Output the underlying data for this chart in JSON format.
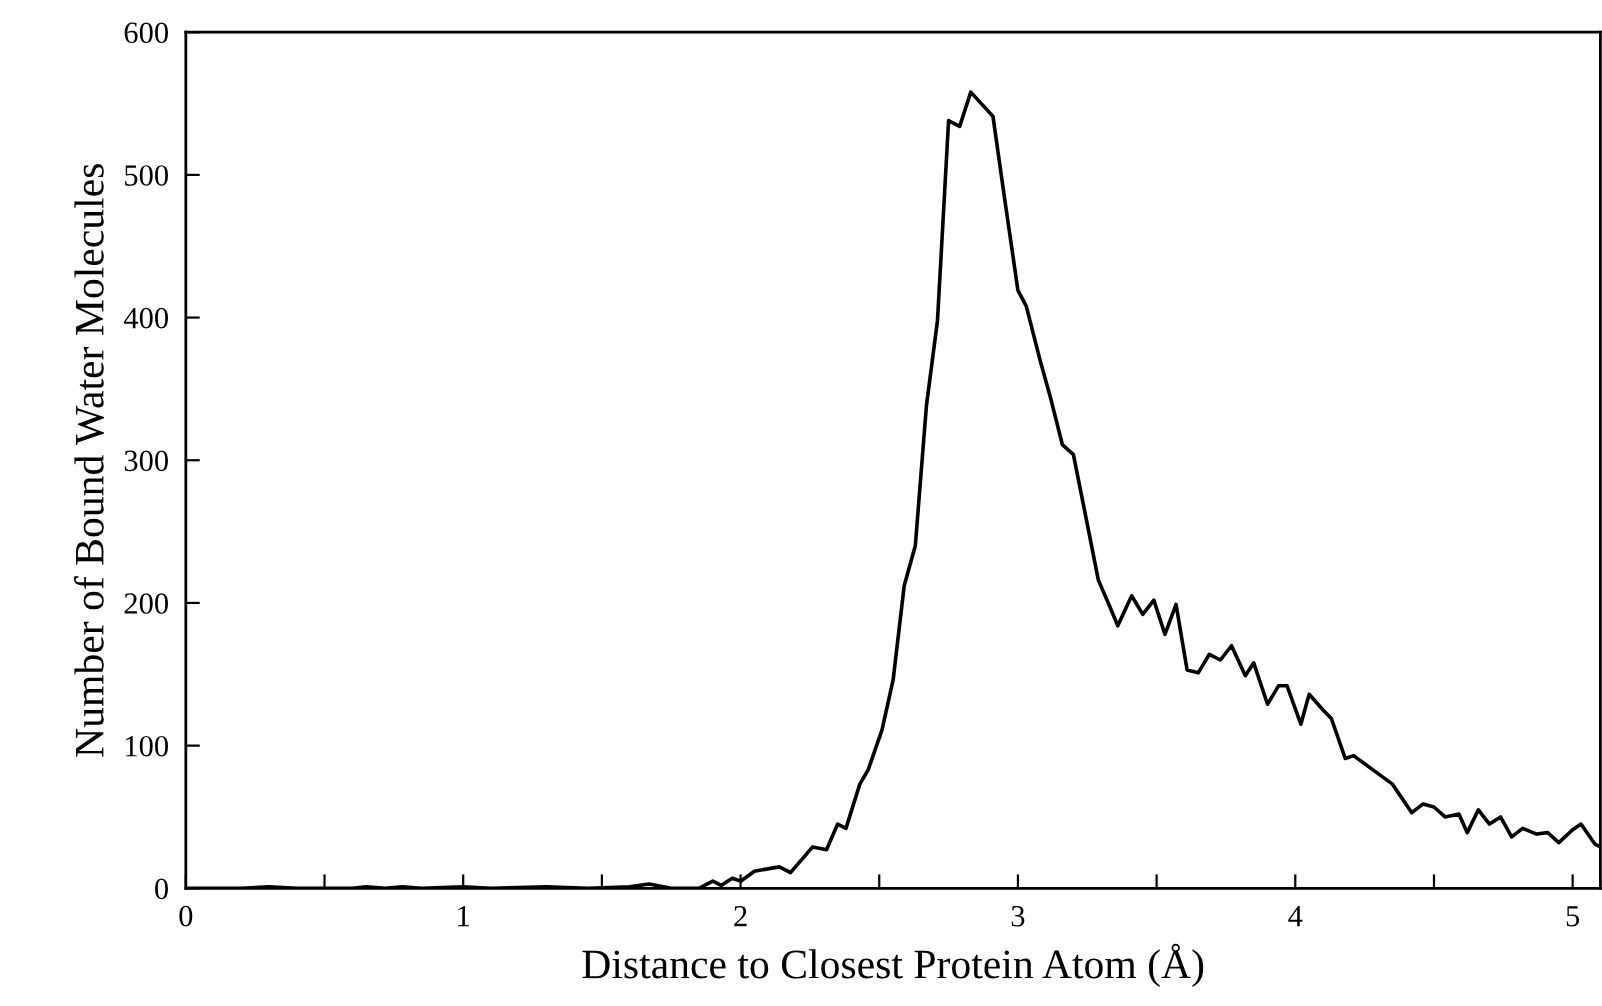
{
  "chart_data": {
    "type": "line",
    "xlabel": "Distance to Closest Protein Atom (Å)",
    "ylabel": "Number of Bound Water Molecules",
    "xlim": [
      0,
      5.1
    ],
    "ylim": [
      0,
      600
    ],
    "xticks": [
      0,
      {
        "value": 0.5,
        "label": null
      },
      1,
      {
        "value": 1.5,
        "label": null
      },
      2,
      {
        "value": 2.5,
        "label": null
      },
      3,
      {
        "value": 3.5,
        "label": null
      },
      4,
      {
        "value": 4.5,
        "label": null
      },
      5
    ],
    "yticks": [
      0,
      100,
      200,
      300,
      400,
      500,
      600
    ],
    "grid": false,
    "legend": false,
    "marker": "none",
    "line_style": "solid",
    "series": [
      {
        "color": "#000000",
        "x": [
          0,
          0.2,
          0.3,
          0.4,
          0.6,
          0.65,
          0.72,
          0.78,
          0.85,
          1.0,
          1.1,
          1.3,
          1.45,
          1.6,
          1.67,
          1.75,
          1.85,
          1.9,
          1.93,
          1.97,
          2.0,
          2.05,
          2.14,
          2.18,
          2.26,
          2.31,
          2.35,
          2.38,
          2.43,
          2.46,
          2.51,
          2.55,
          2.59,
          2.63,
          2.67,
          2.71,
          2.75,
          2.79,
          2.83,
          2.91,
          2.95,
          3.0,
          3.03,
          3.08,
          3.12,
          3.16,
          3.2,
          3.24,
          3.29,
          3.33,
          3.36,
          3.41,
          3.45,
          3.49,
          3.53,
          3.57,
          3.61,
          3.65,
          3.69,
          3.73,
          3.77,
          3.82,
          3.85,
          3.9,
          3.94,
          3.97,
          4.02,
          4.05,
          4.1,
          4.13,
          4.18,
          4.21,
          4.28,
          4.35,
          4.42,
          4.46,
          4.5,
          4.54,
          4.59,
          4.62,
          4.66,
          4.7,
          4.74,
          4.78,
          4.82,
          4.87,
          4.91,
          4.95,
          5.0,
          5.03,
          5.08,
          5.1
        ],
        "values": [
          0,
          0,
          1,
          0,
          0,
          1,
          0,
          1,
          0,
          1,
          0,
          1,
          0,
          1,
          3,
          0,
          0,
          5,
          2,
          7,
          5,
          12,
          15,
          11,
          29,
          27,
          45,
          42,
          73,
          83,
          111,
          146,
          212,
          240,
          338,
          398,
          538,
          534,
          558,
          541,
          486,
          419,
          408,
          370,
          342,
          311,
          304,
          265,
          216,
          198,
          184,
          205,
          192,
          202,
          178,
          199,
          153,
          151,
          164,
          160,
          170,
          149,
          158,
          129,
          142,
          142,
          115,
          136,
          125,
          119,
          91,
          93,
          83,
          73,
          53,
          59,
          57,
          50,
          52,
          39,
          55,
          45,
          50,
          36,
          42,
          38,
          39,
          32,
          41,
          45,
          31,
          29
        ]
      }
    ]
  }
}
